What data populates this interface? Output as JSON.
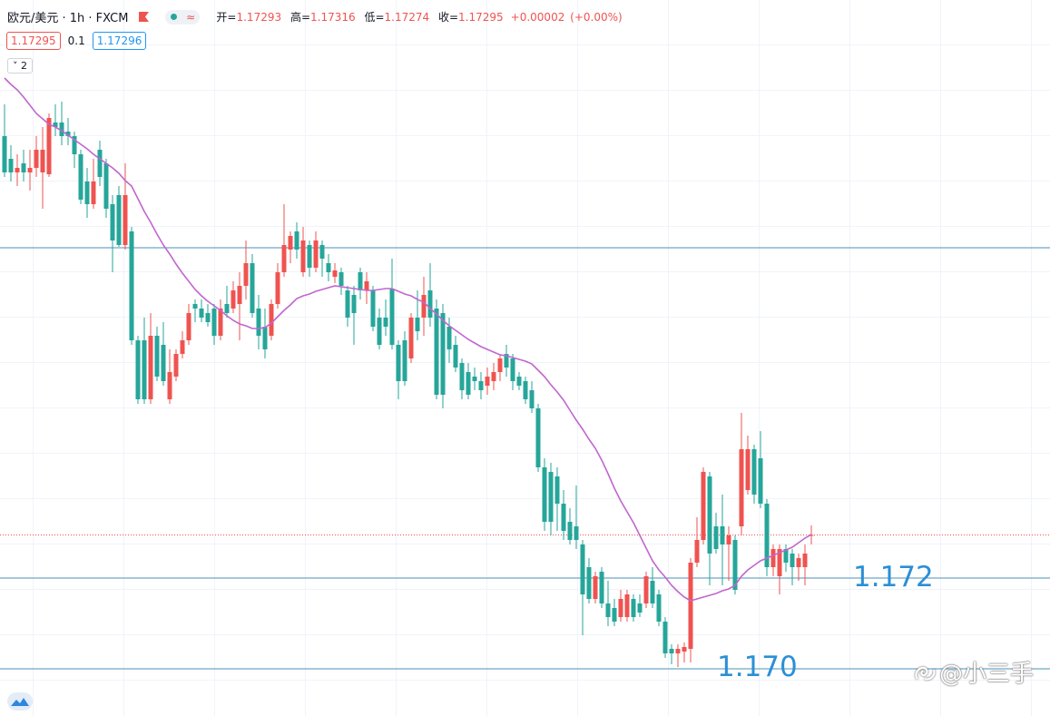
{
  "header": {
    "title": "欧元/美元 · 1h · FXCM",
    "ohlc_labels": [
      "开=",
      "高=",
      "低=",
      "收="
    ],
    "change": "+0.00002",
    "change_pct": "(+0.00%)",
    "spread": 0.1,
    "ask": 1.17296,
    "indicators_hidden": 2
  },
  "watermark": "@小三手",
  "chart_data": {
    "type": "candlestick",
    "up_color": "#ef5350",
    "down_color": "#26a69a",
    "ylim": [
      1.16896,
      1.18474
    ],
    "open": [
      1.18174,
      1.18124,
      1.18094,
      1.18114,
      1.18094,
      1.18104,
      1.18094,
      1.1809,
      1.18204,
      1.18204,
      1.18184,
      1.18174,
      1.18134,
      1.18074,
      1.18024,
      1.18144,
      1.18114,
      1.18024,
      1.18044,
      1.17934,
      1.17964,
      1.17724,
      1.17724,
      1.17594,
      1.17734,
      1.17714,
      1.17594,
      1.17644,
      1.17694,
      1.17724,
      1.17804,
      1.17794,
      1.17784,
      1.17794,
      1.17734,
      1.17804,
      1.17794,
      1.17804,
      1.17844,
      1.17894,
      1.17794,
      1.17754,
      1.17734,
      1.17804,
      1.17874,
      1.17924,
      1.17964,
      1.17874,
      1.17934,
      1.17884,
      1.17934,
      1.17894,
      1.17864,
      1.17874,
      1.17834,
      1.17824,
      1.17874,
      1.17834,
      1.17834,
      1.17774,
      1.17774,
      1.17838,
      1.17714,
      1.17724,
      1.17684,
      1.17774,
      1.17774,
      1.17834,
      1.17794,
      1.17784,
      1.17754,
      1.17714,
      1.17674,
      1.17654,
      1.17644,
      1.17634,
      1.17624,
      1.17634,
      1.17654,
      1.17694,
      1.17684,
      1.17644,
      1.17634,
      1.17614,
      1.17574,
      1.17444,
      1.17434,
      1.17424,
      1.17364,
      1.17324,
      1.17314,
      1.17274,
      1.17224,
      1.17154,
      1.17214,
      1.17144,
      1.17134,
      1.17114,
      1.17114,
      1.17154,
      1.17144,
      1.17144,
      1.17194,
      1.17164,
      1.17104,
      1.17044,
      1.17034,
      1.17038,
      1.17044,
      1.17234,
      1.17284,
      1.17424,
      1.17314,
      1.17314,
      1.17274,
      1.17284,
      1.17314,
      1.17394,
      1.17484,
      1.17464,
      1.17364,
      1.17224,
      1.17204,
      1.17264,
      1.17254,
      1.17224,
      1.17224,
      1.17293
    ],
    "high": [
      1.18244,
      1.18154,
      1.18134,
      1.18144,
      1.18144,
      1.18174,
      1.18194,
      1.18224,
      1.18244,
      1.1825,
      1.18214,
      1.18184,
      1.18144,
      1.18104,
      1.18124,
      1.18164,
      1.18124,
      1.18044,
      1.18064,
      1.18114,
      1.17974,
      1.17734,
      1.17774,
      1.17784,
      1.17754,
      1.17764,
      1.17704,
      1.17704,
      1.17744,
      1.17804,
      1.17814,
      1.17814,
      1.17804,
      1.17804,
      1.17814,
      1.17844,
      1.17854,
      1.17874,
      1.17944,
      1.17914,
      1.17824,
      1.17794,
      1.17814,
      1.17894,
      1.18024,
      1.17964,
      1.17984,
      1.17974,
      1.17944,
      1.17964,
      1.17944,
      1.17914,
      1.17894,
      1.17884,
      1.17844,
      1.17844,
      1.17884,
      1.17874,
      1.17844,
      1.17794,
      1.17814,
      1.17904,
      1.17724,
      1.17744,
      1.17784,
      1.17834,
      1.17864,
      1.17894,
      1.17814,
      1.17804,
      1.17774,
      1.17734,
      1.17684,
      1.17674,
      1.17664,
      1.17654,
      1.17664,
      1.17674,
      1.17694,
      1.17714,
      1.17694,
      1.17654,
      1.17644,
      1.17634,
      1.17584,
      1.17464,
      1.17454,
      1.17444,
      1.17394,
      1.17354,
      1.17404,
      1.17284,
      1.17244,
      1.17214,
      1.17224,
      1.17194,
      1.17154,
      1.17174,
      1.17174,
      1.17164,
      1.17164,
      1.17214,
      1.17224,
      1.17174,
      1.17114,
      1.17054,
      1.17054,
      1.17058,
      1.17244,
      1.17334,
      1.17444,
      1.17434,
      1.17344,
      1.17384,
      1.17314,
      1.17294,
      1.17564,
      1.17514,
      1.17494,
      1.17524,
      1.17374,
      1.17274,
      1.17274,
      1.17274,
      1.17264,
      1.17254,
      1.17274,
      1.17316
    ],
    "low": [
      1.18084,
      1.18074,
      1.18064,
      1.18074,
      1.18054,
      1.18084,
      1.18014,
      1.18084,
      1.18174,
      1.18154,
      1.18154,
      1.18104,
      1.18024,
      1.17994,
      1.18014,
      1.18064,
      1.17994,
      1.17874,
      1.1793,
      1.17924,
      1.17714,
      1.17584,
      1.17584,
      1.17584,
      1.17634,
      1.17624,
      1.17584,
      1.17634,
      1.17684,
      1.17714,
      1.17764,
      1.17764,
      1.17754,
      1.17714,
      1.17724,
      1.17774,
      1.17784,
      1.17724,
      1.17814,
      1.17774,
      1.17704,
      1.17684,
      1.17724,
      1.17794,
      1.17864,
      1.17894,
      1.17904,
      1.17864,
      1.17864,
      1.17874,
      1.17864,
      1.17854,
      1.1785,
      1.17824,
      1.17754,
      1.17714,
      1.17814,
      1.17804,
      1.17744,
      1.17704,
      1.17734,
      1.17704,
      1.17594,
      1.17624,
      1.17674,
      1.17724,
      1.17734,
      1.17754,
      1.17594,
      1.17574,
      1.17674,
      1.17654,
      1.17594,
      1.17594,
      1.17614,
      1.17594,
      1.17604,
      1.17614,
      1.17634,
      1.17644,
      1.17614,
      1.17614,
      1.17584,
      1.17564,
      1.17434,
      1.17304,
      1.17294,
      1.17304,
      1.17284,
      1.17274,
      1.17264,
      1.17074,
      1.17144,
      1.17144,
      1.17134,
      1.17094,
      1.17094,
      1.17104,
      1.17104,
      1.17104,
      1.17114,
      1.17134,
      1.17134,
      1.17094,
      1.17024,
      1.1701,
      1.17004,
      1.17014,
      1.17014,
      1.17224,
      1.17274,
      1.17184,
      1.17254,
      1.17184,
      1.17194,
      1.17164,
      1.17294,
      1.17384,
      1.17364,
      1.17354,
      1.17204,
      1.17204,
      1.17164,
      1.17214,
      1.17184,
      1.17194,
      1.17184,
      1.17274
    ],
    "close": [
      1.18094,
      1.18094,
      1.18104,
      1.18094,
      1.18104,
      1.18144,
      1.18144,
      1.18214,
      1.18194,
      1.18174,
      1.18174,
      1.18134,
      1.18034,
      1.18024,
      1.18074,
      1.18084,
      1.18014,
      1.17944,
      1.17934,
      1.18044,
      1.17724,
      1.17594,
      1.17594,
      1.17734,
      1.17644,
      1.17634,
      1.17654,
      1.17694,
      1.17724,
      1.17784,
      1.17794,
      1.17774,
      1.17764,
      1.17734,
      1.17794,
      1.17784,
      1.17834,
      1.17844,
      1.17894,
      1.17784,
      1.17734,
      1.17704,
      1.17804,
      1.17874,
      1.17934,
      1.17954,
      1.17924,
      1.17944,
      1.17884,
      1.17944,
      1.17904,
      1.17874,
      1.17878,
      1.17844,
      1.17774,
      1.17784,
      1.17834,
      1.17854,
      1.17754,
      1.17714,
      1.17754,
      1.17714,
      1.17634,
      1.17634,
      1.17774,
      1.17744,
      1.17824,
      1.17774,
      1.17604,
      1.17604,
      1.17704,
      1.17664,
      1.17614,
      1.17604,
      1.17634,
      1.17614,
      1.17644,
      1.17654,
      1.17684,
      1.17664,
      1.17634,
      1.17624,
      1.17594,
      1.17574,
      1.17444,
      1.17324,
      1.17324,
      1.17364,
      1.17304,
      1.17284,
      1.17284,
      1.17164,
      1.17154,
      1.17204,
      1.17144,
      1.17114,
      1.17104,
      1.17154,
      1.17164,
      1.17114,
      1.17124,
      1.17204,
      1.17144,
      1.17104,
      1.17034,
      1.17034,
      1.17044,
      1.17048,
      1.17234,
      1.17284,
      1.17434,
      1.17254,
      1.17264,
      1.17274,
      1.17294,
      1.17174,
      1.17484,
      1.17484,
      1.17384,
      1.17364,
      1.17224,
      1.17264,
      1.17264,
      1.17234,
      1.17224,
      1.17244,
      1.17254,
      1.17295
    ],
    "ma": {
      "color": "#c166cf",
      "values": [
        1.18302,
        1.18288,
        1.18276,
        1.1826,
        1.18242,
        1.18224,
        1.18212,
        1.182,
        1.18194,
        1.18186,
        1.18176,
        1.18166,
        1.18156,
        1.18146,
        1.18134,
        1.18124,
        1.18114,
        1.18104,
        1.18092,
        1.18076,
        1.18064,
        1.18036,
        1.18008,
        1.17984,
        1.17958,
        1.17934,
        1.17914,
        1.17892,
        1.17872,
        1.17854,
        1.17836,
        1.17822,
        1.1781,
        1.178,
        1.1779,
        1.17778,
        1.17768,
        1.1776,
        1.17756,
        1.1775,
        1.1775,
        1.17752,
        1.17762,
        1.17776,
        1.1779,
        1.17802,
        1.17816,
        1.17822,
        1.17826,
        1.17832,
        1.17836,
        1.1784,
        1.17844,
        1.17842,
        1.1784,
        1.17838,
        1.17836,
        1.17834,
        1.17834,
        1.17836,
        1.17838,
        1.17838,
        1.17832,
        1.17826,
        1.17822,
        1.17814,
        1.17808,
        1.17794,
        1.17782,
        1.17768,
        1.17756,
        1.17746,
        1.17736,
        1.17726,
        1.17718,
        1.1771,
        1.17704,
        1.17698,
        1.17692,
        1.1769,
        1.17686,
        1.17682,
        1.17678,
        1.17672,
        1.17658,
        1.17644,
        1.17626,
        1.1761,
        1.17592,
        1.1757,
        1.17548,
        1.17528,
        1.17506,
        1.17486,
        1.1746,
        1.1743,
        1.17398,
        1.1737,
        1.17346,
        1.17322,
        1.17294,
        1.17266,
        1.17238,
        1.17218,
        1.17202,
        1.17184,
        1.1717,
        1.17158,
        1.1715,
        1.17154,
        1.17158,
        1.17162,
        1.17166,
        1.17172,
        1.17176,
        1.17184,
        1.17204,
        1.17218,
        1.17228,
        1.17238,
        1.17244,
        1.1725,
        1.17256,
        1.17262,
        1.17268,
        1.17278,
        1.17288,
        1.17296
      ]
    },
    "level_color": "#4a90b8",
    "levels": [
      {
        "value": 1.17928
      },
      {
        "value": 1.172,
        "label": "1.172"
      },
      {
        "value": 1.17,
        "label": "1.170"
      }
    ],
    "last_price_color": "#ef5350"
  }
}
